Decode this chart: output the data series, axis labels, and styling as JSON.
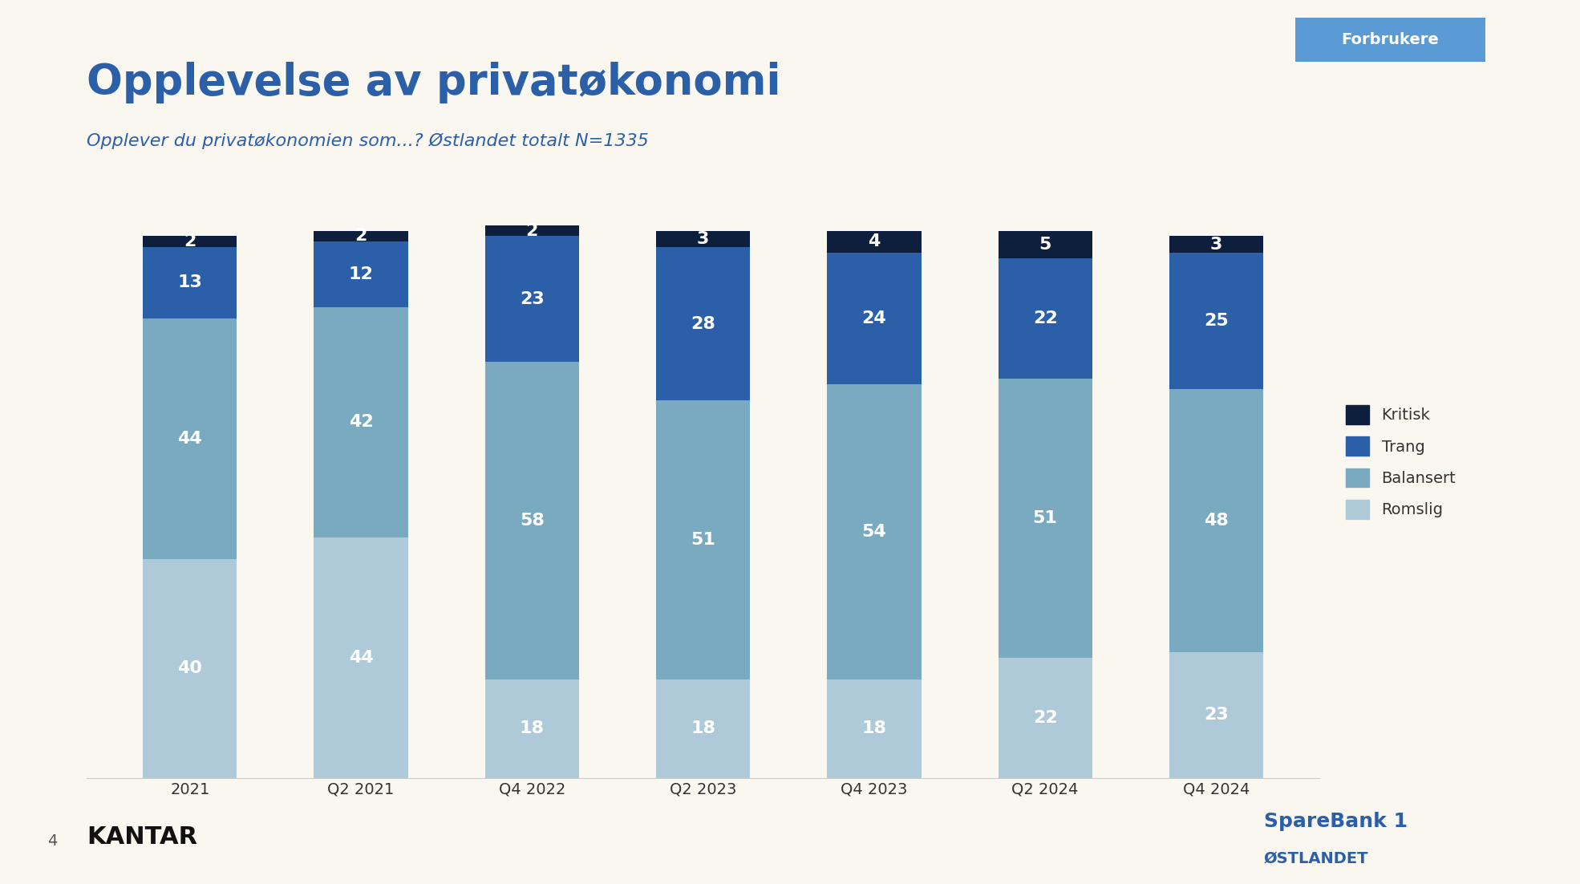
{
  "title": "Opplevelse av privatøkonomi",
  "subtitle": "Opplever du privatøkonomien som...? Østlandet totalt N=1335",
  "background_color": "#FAF7F0",
  "categories": [
    "2021",
    "Q2 2021",
    "Q4 2022",
    "Q2 2023",
    "Q4 2023",
    "Q2 2024",
    "Q4 2024"
  ],
  "series": {
    "Romslig": [
      40,
      44,
      18,
      18,
      18,
      22,
      23
    ],
    "Balansert": [
      44,
      42,
      58,
      51,
      54,
      51,
      48
    ],
    "Trang": [
      13,
      12,
      23,
      28,
      24,
      22,
      25
    ],
    "Kritisk": [
      2,
      2,
      2,
      3,
      4,
      5,
      3
    ]
  },
  "colors": {
    "Romslig": "#AECAD9",
    "Balansert": "#7AAABF",
    "Trang": "#2B5FA8",
    "Kritisk": "#0D1F3C"
  },
  "bar_width": 0.55,
  "title_fontsize": 38,
  "subtitle_fontsize": 16,
  "label_fontsize": 16,
  "tick_fontsize": 14,
  "legend_fontsize": 14,
  "title_color": "#2B5FA8",
  "subtitle_color": "#2B5FA8",
  "text_color": "#FFFFFF",
  "xlabel_color": "#333333",
  "tag_text": "Forbrukere",
  "tag_bg": "#5B9BD5",
  "tag_text_color": "#FFFFFF",
  "footer_left": "KANTAR",
  "footer_page": "4",
  "ylim": [
    0,
    105
  ]
}
